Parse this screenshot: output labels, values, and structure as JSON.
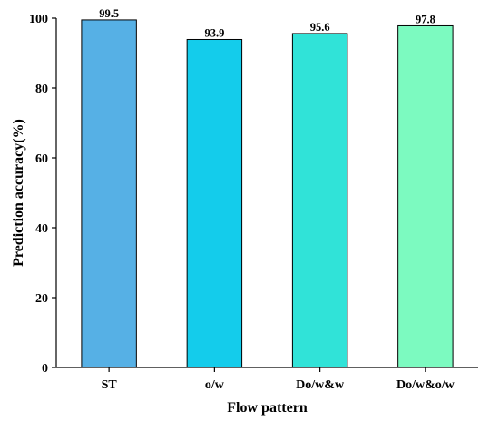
{
  "chart_data": {
    "type": "bar",
    "categories": [
      "ST",
      "o/w",
      "Do/w&w",
      "Do/w&o/w"
    ],
    "values": [
      99.5,
      93.9,
      95.6,
      97.8
    ],
    "data_labels": [
      "99.5",
      "93.9",
      "95.6",
      "97.8"
    ],
    "bar_colors": [
      "#56B0E5",
      "#14CCEB",
      "#30E3D8",
      "#7CFAC0"
    ],
    "title": "",
    "xlabel": "Flow pattern",
    "ylabel": "Prediction accuracy(%)",
    "ylim": [
      0,
      100
    ],
    "yticks": [
      0,
      20,
      40,
      60,
      80,
      100
    ],
    "grid": false,
    "legend": "none"
  }
}
